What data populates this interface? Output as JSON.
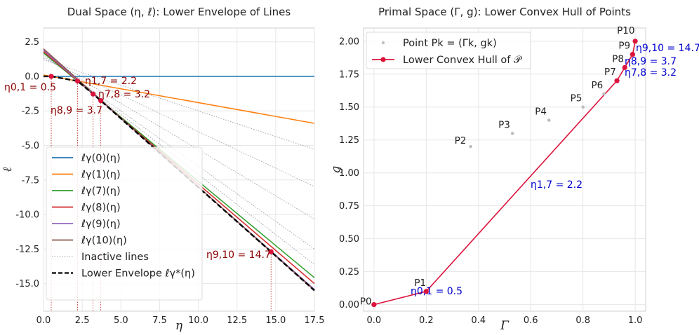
{
  "chart_data": [
    {
      "type": "line",
      "title": "Dual Space (η, ℓ): Lower Envelope of Lines",
      "xlabel": "η",
      "ylabel": "ℓ",
      "xlim": [
        0,
        17.5
      ],
      "ylim": [
        -17,
        3.5
      ],
      "grid": true,
      "legend_position": "lower-left",
      "xticks": [
        "0.0",
        "2.5",
        "5.0",
        "7.5",
        "10.0",
        "12.5",
        "15.0",
        "17.5"
      ],
      "yticks": [
        "2.5",
        "0.0",
        "-2.5",
        "-5.0",
        "-7.5",
        "-10.0",
        "-12.5",
        "-15.0"
      ],
      "series": [
        {
          "name": "ℓγ(0)(η)",
          "color": "#1f77b4",
          "intercept": 0.0,
          "slope": 0.0
        },
        {
          "name": "ℓγ(1)(η)",
          "color": "#ff7f0e",
          "intercept": 0.1,
          "slope": -0.2
        },
        {
          "name": "ℓγ(7)(η)",
          "color": "#2ca02c",
          "intercept": 1.7,
          "slope": -0.93
        },
        {
          "name": "ℓγ(8)(η)",
          "color": "#d62728",
          "intercept": 1.8,
          "slope": -0.96
        },
        {
          "name": "ℓγ(9)(η)",
          "color": "#9467bd",
          "intercept": 1.9,
          "slope": -0.99
        },
        {
          "name": "ℓγ(10)(η)",
          "color": "#8c564b",
          "intercept": 2.0,
          "slope": -1.0
        }
      ],
      "inactive_series": {
        "name": "Inactive lines",
        "color": "#9aa0a8",
        "lines": [
          {
            "intercept": 1.2,
            "slope": -0.37
          },
          {
            "intercept": 1.3,
            "slope": -0.53
          },
          {
            "intercept": 1.4,
            "slope": -0.67
          },
          {
            "intercept": 1.5,
            "slope": -0.8
          },
          {
            "intercept": 1.6,
            "slope": -0.87
          }
        ]
      },
      "envelope": {
        "name": "Lower Envelope ℓγ*(η)",
        "color": "#000000",
        "x": [
          0,
          0.5,
          2.2,
          3.2,
          3.7,
          14.7,
          17.5
        ],
        "y": [
          0.0,
          0.0,
          -0.34,
          -1.28,
          -1.76,
          -12.7,
          -15.5
        ]
      },
      "breakpoints": [
        {
          "label": "η0,1 = 0.5",
          "x": 0.5,
          "y": 0.0
        },
        {
          "label": "η1,7 = 2.2",
          "x": 2.2,
          "y": -0.34
        },
        {
          "label": "η7,8 = 3.2",
          "x": 3.2,
          "y": -1.28
        },
        {
          "label": "η8,9 = 3.7",
          "x": 3.7,
          "y": -1.76
        },
        {
          "label": "η9,10 = 14.7",
          "x": 14.7,
          "y": -12.7
        }
      ],
      "annotation_color": "#8b0000"
    },
    {
      "type": "scatter",
      "title": "Primal Space (Γ, g): Lower Convex Hull of Points",
      "xlabel": "Γ",
      "ylabel": "g",
      "xlim": [
        -0.04,
        1.04
      ],
      "ylim": [
        -0.05,
        2.1
      ],
      "grid": true,
      "legend_position": "top-left",
      "xticks": [
        "0.0",
        "0.2",
        "0.4",
        "0.6",
        "0.8",
        "1.0"
      ],
      "yticks": [
        "0.00",
        "0.25",
        "0.50",
        "0.75",
        "1.00",
        "1.25",
        "1.50",
        "1.75",
        "2.00"
      ],
      "points": [
        {
          "label": "P0",
          "x": 0.0,
          "y": 0.0
        },
        {
          "label": "P1",
          "x": 0.2,
          "y": 0.1
        },
        {
          "label": "P2",
          "x": 0.37,
          "y": 1.2
        },
        {
          "label": "P3",
          "x": 0.53,
          "y": 1.3
        },
        {
          "label": "P4",
          "x": 0.67,
          "y": 1.4
        },
        {
          "label": "P5",
          "x": 0.8,
          "y": 1.5
        },
        {
          "label": "P6",
          "x": 0.88,
          "y": 1.6
        },
        {
          "label": "P7",
          "x": 0.93,
          "y": 1.7
        },
        {
          "label": "P8",
          "x": 0.96,
          "y": 1.8
        },
        {
          "label": "P9",
          "x": 0.99,
          "y": 1.9
        },
        {
          "label": "P10",
          "x": 1.0,
          "y": 2.0
        }
      ],
      "point_legend": "Point Pk = (Γk, gk)",
      "hull": {
        "name": "Lower Convex Hull of 𝒫",
        "color": "#dc143c",
        "point_indices": [
          0,
          1,
          7,
          8,
          9,
          10
        ]
      },
      "slope_labels": [
        {
          "label": "η0,1 = 0.5"
        },
        {
          "label": "η1,7 = 2.2"
        },
        {
          "label": "η7,8 = 3.2"
        },
        {
          "label": "η8,9 = 3.7"
        },
        {
          "label": "η9,10 = 14.7"
        }
      ],
      "annotation_color": "#0000cd"
    }
  ]
}
